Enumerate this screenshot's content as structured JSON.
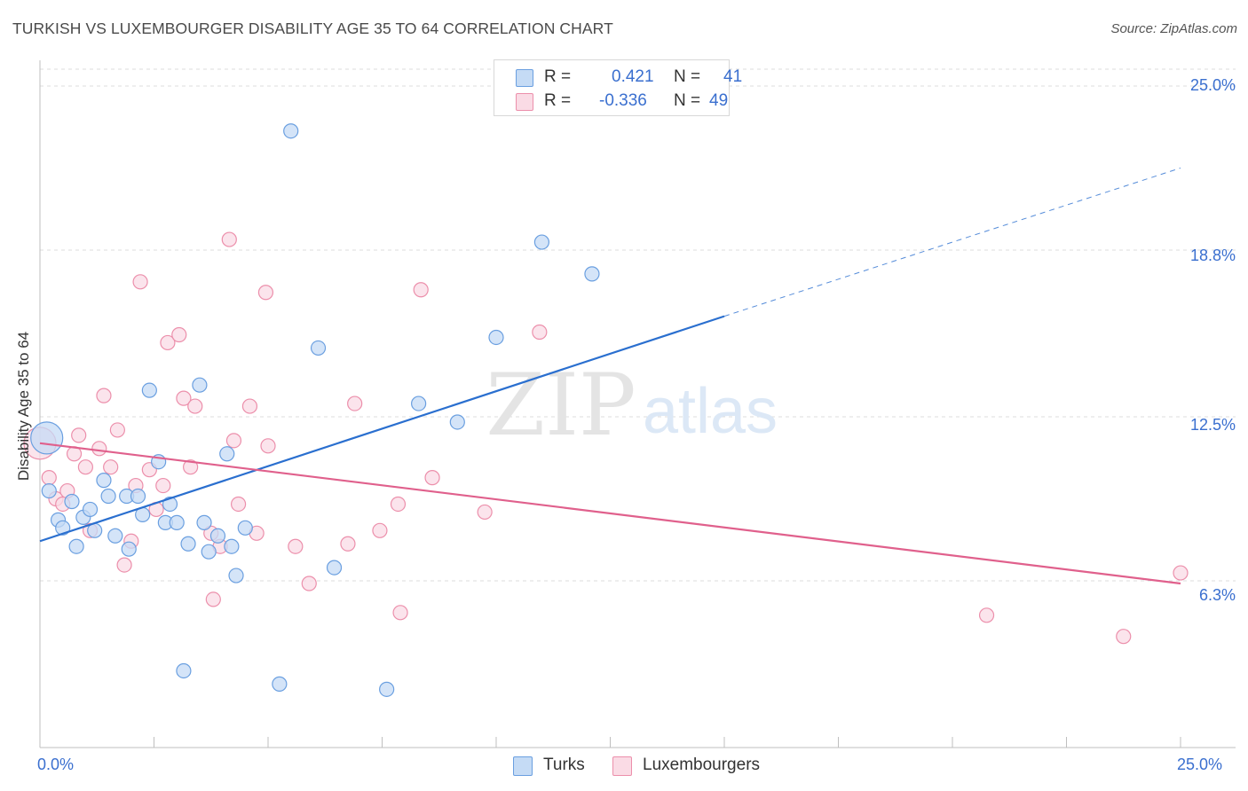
{
  "header": {
    "title": "TURKISH VS LUXEMBOURGER DISABILITY AGE 35 TO 64 CORRELATION CHART",
    "source": "Source: ZipAtlas.com"
  },
  "watermark": {
    "zip": "ZIP",
    "atlas": "atlas"
  },
  "legend": {
    "series": [
      {
        "r_label": "R =",
        "r_value": "0.421",
        "n_label": "N =",
        "n_value": "41",
        "color": "#a9c8f0"
      },
      {
        "r_label": "R =",
        "r_value": "-0.336",
        "n_label": "N =",
        "n_value": "49",
        "color": "#f5b8c8"
      }
    ]
  },
  "bottom_legend": {
    "turks": "Turks",
    "luxembourgers": "Luxembourgers"
  },
  "chart_data": {
    "type": "scatter",
    "title": "TURKISH VS LUXEMBOURGER DISABILITY AGE 35 TO 64 CORRELATION CHART",
    "xlabel": "",
    "ylabel": "Disability Age 35 to 64",
    "xlim": [
      0,
      25
    ],
    "ylim": [
      0,
      25.9
    ],
    "x_tick_labels": [
      "0.0%",
      "25.0%"
    ],
    "y_tick_labels": [
      "6.3%",
      "12.5%",
      "18.8%",
      "25.0%"
    ],
    "y_ticks": [
      6.3,
      12.5,
      18.8,
      25.0
    ],
    "grid": "horizontal dashed",
    "legend_position": "top-center",
    "colors": {
      "turks": "#6a9fe0",
      "turks_fill": "#c5dbf5",
      "turks_line": "#2a6fcf",
      "lux": "#ec8fab",
      "lux_fill": "#fadbe5",
      "lux_line": "#e0608c"
    },
    "series": [
      {
        "name": "Turks",
        "r": 0.421,
        "n": 41,
        "trend": {
          "x": [
            0,
            15
          ],
          "y": [
            7.8,
            16.3
          ],
          "dashed_to": {
            "x": 25,
            "y": 21.9
          }
        },
        "points": [
          [
            0.15,
            11.7
          ],
          [
            0.2,
            9.7
          ],
          [
            0.4,
            8.6
          ],
          [
            0.5,
            8.3
          ],
          [
            0.7,
            9.3
          ],
          [
            0.8,
            7.6
          ],
          [
            0.95,
            8.7
          ],
          [
            1.1,
            9.0
          ],
          [
            1.2,
            8.2
          ],
          [
            1.4,
            10.1
          ],
          [
            1.5,
            9.5
          ],
          [
            1.65,
            8.0
          ],
          [
            1.9,
            9.5
          ],
          [
            1.95,
            7.5
          ],
          [
            2.15,
            9.5
          ],
          [
            2.25,
            8.8
          ],
          [
            2.4,
            13.5
          ],
          [
            2.6,
            10.8
          ],
          [
            2.75,
            8.5
          ],
          [
            2.85,
            9.2
          ],
          [
            3.0,
            8.5
          ],
          [
            3.15,
            2.9
          ],
          [
            3.25,
            7.7
          ],
          [
            3.5,
            13.7
          ],
          [
            3.6,
            8.5
          ],
          [
            3.7,
            7.4
          ],
          [
            3.9,
            8.0
          ],
          [
            4.1,
            11.1
          ],
          [
            4.2,
            7.6
          ],
          [
            4.3,
            6.5
          ],
          [
            4.5,
            8.3
          ],
          [
            5.25,
            2.4
          ],
          [
            5.5,
            23.3
          ],
          [
            6.1,
            15.1
          ],
          [
            6.45,
            6.8
          ],
          [
            7.6,
            2.2
          ],
          [
            8.3,
            13.0
          ],
          [
            9.15,
            12.3
          ],
          [
            10.0,
            15.5
          ],
          [
            11.0,
            19.1
          ],
          [
            12.1,
            17.9
          ]
        ]
      },
      {
        "name": "Luxembourgers",
        "r": -0.336,
        "n": 49,
        "trend": {
          "x": [
            0,
            25
          ],
          "y": [
            11.5,
            6.2
          ]
        },
        "points": [
          [
            0.0,
            11.5
          ],
          [
            0.2,
            10.2
          ],
          [
            0.35,
            9.4
          ],
          [
            0.5,
            9.2
          ],
          [
            0.6,
            9.7
          ],
          [
            0.75,
            11.1
          ],
          [
            0.85,
            11.8
          ],
          [
            1.0,
            10.6
          ],
          [
            1.1,
            8.2
          ],
          [
            1.3,
            11.3
          ],
          [
            1.4,
            13.3
          ],
          [
            1.55,
            10.6
          ],
          [
            1.7,
            12.0
          ],
          [
            1.85,
            6.9
          ],
          [
            2.0,
            7.8
          ],
          [
            2.1,
            9.9
          ],
          [
            2.2,
            17.6
          ],
          [
            2.4,
            10.5
          ],
          [
            2.55,
            9.0
          ],
          [
            2.7,
            9.9
          ],
          [
            2.8,
            15.3
          ],
          [
            3.05,
            15.6
          ],
          [
            3.15,
            13.2
          ],
          [
            3.3,
            10.6
          ],
          [
            3.4,
            12.9
          ],
          [
            3.75,
            8.1
          ],
          [
            3.8,
            5.6
          ],
          [
            3.95,
            7.6
          ],
          [
            4.15,
            19.2
          ],
          [
            4.25,
            11.6
          ],
          [
            4.35,
            9.2
          ],
          [
            4.6,
            12.9
          ],
          [
            4.75,
            8.1
          ],
          [
            4.95,
            17.2
          ],
          [
            5.0,
            11.4
          ],
          [
            5.6,
            7.6
          ],
          [
            5.9,
            6.2
          ],
          [
            6.75,
            7.7
          ],
          [
            6.9,
            13.0
          ],
          [
            7.45,
            8.2
          ],
          [
            7.85,
            9.2
          ],
          [
            7.9,
            5.1
          ],
          [
            8.35,
            17.3
          ],
          [
            8.6,
            10.2
          ],
          [
            9.75,
            8.9
          ],
          [
            10.95,
            15.7
          ],
          [
            20.75,
            5.0
          ],
          [
            23.75,
            4.2
          ],
          [
            25.0,
            6.6
          ]
        ]
      }
    ]
  }
}
